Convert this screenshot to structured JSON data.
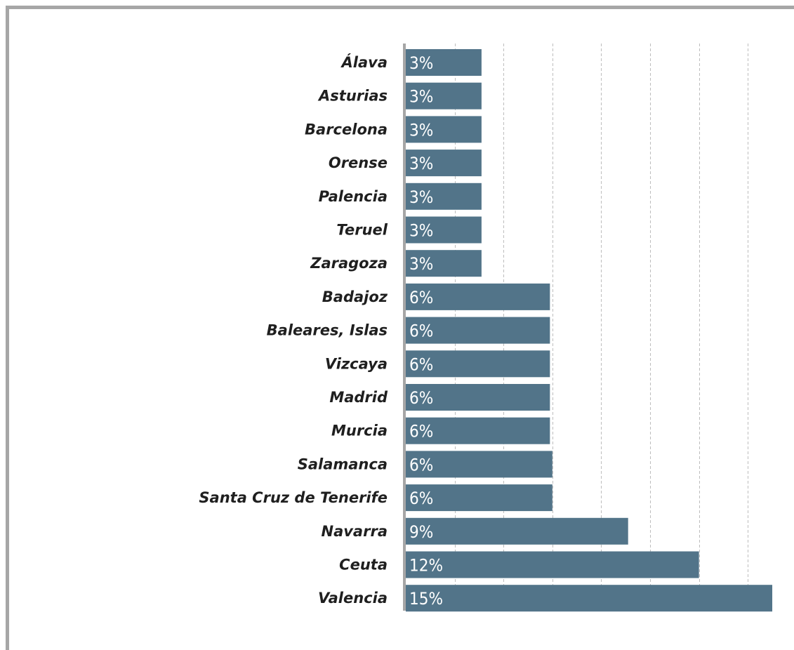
{
  "colors": {
    "bar": "#527489",
    "grid": "#bdbdbd",
    "axis": "#a6a6a6",
    "frame": "#a6a6a6",
    "label": "#1f1f1f",
    "value_label": "#ffffff"
  },
  "chart_data": {
    "type": "bar",
    "orientation": "horizontal",
    "categories": [
      "Álava",
      "Asturias",
      "Barcelona",
      "Orense",
      "Palencia",
      "Teruel",
      "Zaragoza",
      "Badajoz",
      "Baleares, Islas",
      "Vizcaya",
      "Madrid",
      "Murcia",
      "Salamanca",
      "Santa Cruz de Tenerife",
      "Navarra",
      "Ceuta",
      "Valencia"
    ],
    "values": [
      3.1,
      3.1,
      3.1,
      3.1,
      3.1,
      3.1,
      3.1,
      5.9,
      5.9,
      5.9,
      5.9,
      5.9,
      6.0,
      6.0,
      9.1,
      12.0,
      15.0
    ],
    "value_labels": [
      "3%",
      "3%",
      "3%",
      "3%",
      "3%",
      "3%",
      "3%",
      "6%",
      "6%",
      "6%",
      "6%",
      "6%",
      "6%",
      "6%",
      "9%",
      "12%",
      "15%"
    ],
    "xlim": [
      0,
      15.2
    ],
    "grid": true,
    "gridline_values": [
      2,
      4,
      6,
      8,
      10,
      12,
      14
    ],
    "gridline_style": "dashed-vertical",
    "legend": "none",
    "title": "",
    "xlabel": "",
    "ylabel": ""
  }
}
